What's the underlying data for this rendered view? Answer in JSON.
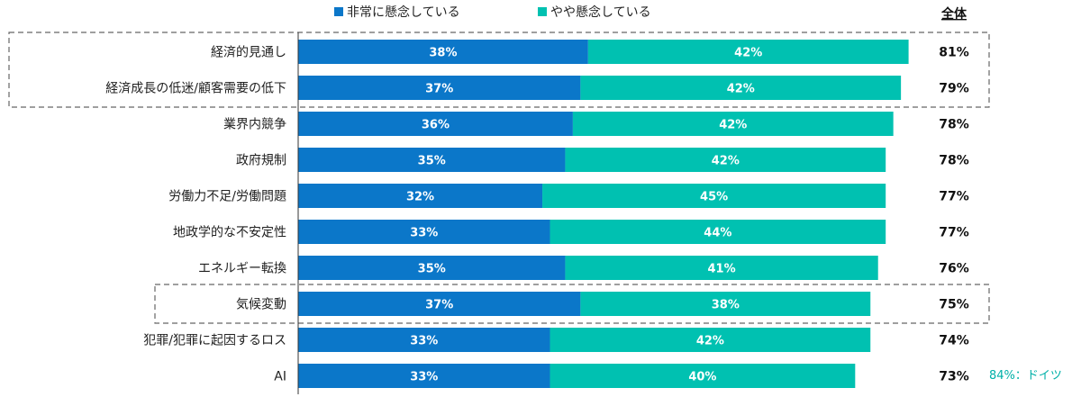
{
  "colors": {
    "series1": "#0b77c9",
    "series2": "#00c1b1",
    "note": "#00b0a8",
    "dash": "#666666",
    "axis": "#333333"
  },
  "total_header": "全体",
  "note": "84%：ドイツ",
  "chart_data": {
    "type": "bar",
    "orientation": "horizontal",
    "stacked": true,
    "categories": [
      "経済的見通し",
      "経済成長の低迷/顧客需要の低下",
      "業界内競争",
      "政府規制",
      "労働力不足/労働問題",
      "地政学的な不安定性",
      "エネルギー転換",
      "気候変動",
      "犯罪/犯罪に起因するロス",
      "AI"
    ],
    "series": [
      {
        "name": "非常に懸念している",
        "values": [
          38,
          37,
          36,
          35,
          32,
          33,
          35,
          37,
          33,
          33
        ],
        "labels": [
          "38%",
          "37%",
          "36%",
          "35%",
          "32%",
          "33%",
          "35%",
          "37%",
          "33%",
          "33%"
        ]
      },
      {
        "name": "やや懸念している",
        "values": [
          42,
          42,
          42,
          42,
          45,
          44,
          41,
          38,
          42,
          40
        ],
        "labels": [
          "42%",
          "42%",
          "42%",
          "42%",
          "45%",
          "44%",
          "41%",
          "38%",
          "42%",
          "40%"
        ]
      }
    ],
    "totals": [
      "81%",
      "79%",
      "78%",
      "78%",
      "77%",
      "77%",
      "76%",
      "75%",
      "74%",
      "73%"
    ],
    "xlim": [
      0,
      100
    ],
    "legend_position": "top",
    "grid": false,
    "highlighted_groups": [
      [
        0,
        1
      ],
      [
        7
      ]
    ]
  }
}
